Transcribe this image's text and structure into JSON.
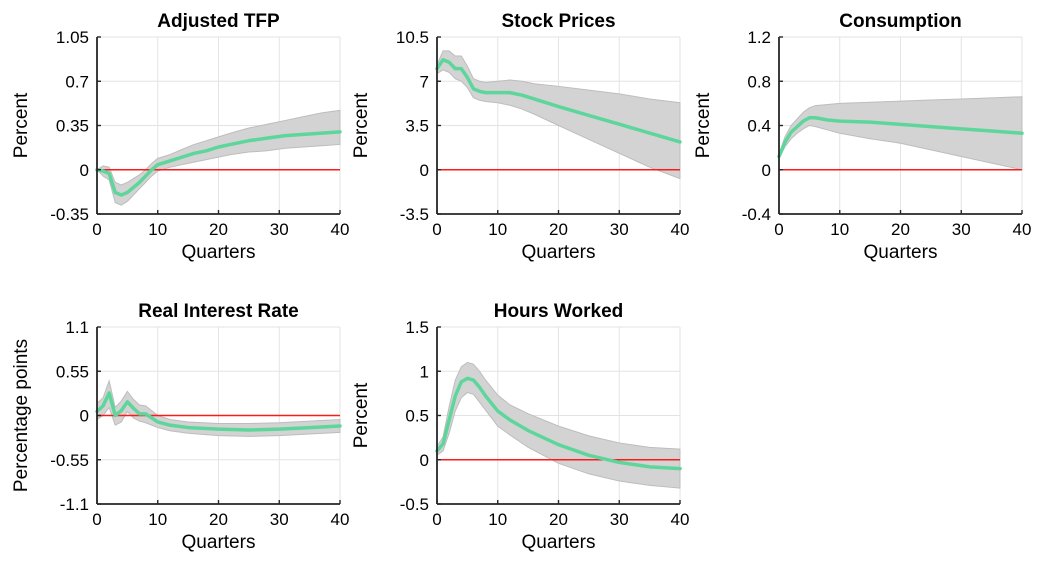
{
  "figure": {
    "background": "#ffffff"
  },
  "style": {
    "line_color": "#5ed69b",
    "band_color": "#d3d3d3",
    "zero_color": "#ff1a1a",
    "grid_color": "#e3e3e3"
  },
  "chart_data": [
    {
      "type": "line",
      "title": "Adjusted TFP",
      "xlabel": "Quarters",
      "ylabel": "Percent",
      "xlim": [
        0,
        40
      ],
      "ylim": [
        -0.35,
        1.05
      ],
      "xticks": [
        0,
        10,
        20,
        30,
        40
      ],
      "yticks": [
        -0.35,
        0,
        0.35,
        0.7,
        1.05
      ],
      "ytick_labels": [
        "-0.35",
        "0",
        "0.35",
        "0.7",
        "1.05"
      ],
      "grid": true,
      "zero_line": true,
      "series": [
        {
          "x": [
            0,
            1,
            2,
            3,
            4,
            5,
            6,
            7,
            8,
            9,
            10,
            12,
            14,
            16,
            18,
            20,
            22,
            25,
            28,
            31,
            34,
            37,
            40
          ],
          "values": [
            0.0,
            -0.01,
            -0.03,
            -0.18,
            -0.2,
            -0.18,
            -0.14,
            -0.1,
            -0.05,
            0.0,
            0.04,
            0.07,
            0.1,
            0.13,
            0.15,
            0.18,
            0.2,
            0.23,
            0.25,
            0.27,
            0.28,
            0.29,
            0.3
          ],
          "lower": [
            0.0,
            -0.05,
            -0.08,
            -0.26,
            -0.28,
            -0.25,
            -0.2,
            -0.15,
            -0.1,
            -0.05,
            -0.01,
            0.02,
            0.04,
            0.06,
            0.08,
            0.1,
            0.12,
            0.14,
            0.15,
            0.17,
            0.18,
            0.19,
            0.2
          ],
          "upper": [
            0.0,
            0.03,
            0.02,
            -0.1,
            -0.12,
            -0.1,
            -0.07,
            -0.04,
            0.0,
            0.05,
            0.09,
            0.12,
            0.16,
            0.2,
            0.23,
            0.26,
            0.29,
            0.33,
            0.36,
            0.39,
            0.42,
            0.45,
            0.47
          ]
        }
      ]
    },
    {
      "type": "line",
      "title": "Stock Prices",
      "xlabel": "Quarters",
      "ylabel": "Percent",
      "xlim": [
        0,
        40
      ],
      "ylim": [
        -3.5,
        10.5
      ],
      "xticks": [
        0,
        10,
        20,
        30,
        40
      ],
      "yticks": [
        -3.5,
        0,
        3.5,
        7,
        10.5
      ],
      "ytick_labels": [
        "-3.5",
        "0",
        "3.5",
        "7",
        "10.5"
      ],
      "grid": true,
      "zero_line": true,
      "series": [
        {
          "x": [
            0,
            1,
            2,
            3,
            4,
            5,
            6,
            7,
            8,
            10,
            12,
            14,
            16,
            20,
            25,
            30,
            35,
            40
          ],
          "values": [
            8.0,
            8.7,
            8.5,
            8.0,
            8.0,
            7.3,
            6.4,
            6.2,
            6.1,
            6.1,
            6.1,
            5.9,
            5.6,
            5.0,
            4.3,
            3.6,
            2.9,
            2.2
          ],
          "lower": [
            7.6,
            7.9,
            7.7,
            7.2,
            7.0,
            6.5,
            5.7,
            5.5,
            5.4,
            5.3,
            5.1,
            4.8,
            4.4,
            3.5,
            2.4,
            1.3,
            0.2,
            -0.7
          ],
          "upper": [
            8.3,
            9.4,
            9.4,
            9.0,
            9.0,
            8.2,
            7.2,
            7.0,
            6.9,
            7.0,
            7.1,
            7.0,
            6.8,
            6.6,
            6.3,
            6.0,
            5.6,
            5.3
          ]
        }
      ]
    },
    {
      "type": "line",
      "title": "Consumption",
      "xlabel": "Quarters",
      "ylabel": "Percent",
      "xlim": [
        0,
        40
      ],
      "ylim": [
        -0.4,
        1.2
      ],
      "xticks": [
        0,
        10,
        20,
        30,
        40
      ],
      "yticks": [
        -0.4,
        0,
        0.4,
        0.8,
        1.2
      ],
      "ytick_labels": [
        "-0.4",
        "0",
        "0.4",
        "0.8",
        "1.2"
      ],
      "grid": true,
      "zero_line": true,
      "series": [
        {
          "x": [
            0,
            1,
            2,
            3,
            4,
            5,
            6,
            8,
            10,
            15,
            20,
            25,
            30,
            35,
            40
          ],
          "values": [
            0.12,
            0.25,
            0.34,
            0.39,
            0.44,
            0.47,
            0.47,
            0.45,
            0.44,
            0.43,
            0.41,
            0.39,
            0.37,
            0.35,
            0.33
          ],
          "lower": [
            0.1,
            0.21,
            0.28,
            0.33,
            0.37,
            0.4,
            0.39,
            0.36,
            0.33,
            0.28,
            0.24,
            0.18,
            0.12,
            0.06,
            0.0
          ],
          "upper": [
            0.14,
            0.3,
            0.4,
            0.46,
            0.52,
            0.56,
            0.58,
            0.59,
            0.6,
            0.61,
            0.62,
            0.63,
            0.64,
            0.65,
            0.66
          ]
        }
      ]
    },
    {
      "type": "line",
      "title": "Real Interest Rate",
      "xlabel": "Quarters",
      "ylabel": "Percentage points",
      "xlim": [
        0,
        40
      ],
      "ylim": [
        -1.1,
        1.1
      ],
      "xticks": [
        0,
        10,
        20,
        30,
        40
      ],
      "yticks": [
        -1.1,
        -0.55,
        0,
        0.55,
        1.1
      ],
      "ytick_labels": [
        "-1.1",
        "-0.55",
        "0",
        "0.55",
        "1.1"
      ],
      "grid": true,
      "zero_line": true,
      "series": [
        {
          "x": [
            0,
            1,
            2,
            3,
            4,
            5,
            6,
            7,
            8,
            9,
            10,
            12,
            15,
            20,
            25,
            30,
            35,
            40
          ],
          "values": [
            0.05,
            0.12,
            0.28,
            0.0,
            0.06,
            0.17,
            0.09,
            0.02,
            0.02,
            -0.03,
            -0.08,
            -0.12,
            -0.15,
            -0.17,
            -0.18,
            -0.17,
            -0.15,
            -0.13
          ],
          "lower": [
            -0.05,
            0.0,
            0.1,
            -0.12,
            -0.08,
            0.05,
            -0.03,
            -0.07,
            -0.09,
            -0.12,
            -0.15,
            -0.19,
            -0.22,
            -0.25,
            -0.26,
            -0.25,
            -0.23,
            -0.21
          ],
          "upper": [
            0.15,
            0.22,
            0.43,
            0.1,
            0.18,
            0.3,
            0.2,
            0.13,
            0.12,
            0.06,
            0.0,
            -0.05,
            -0.08,
            -0.1,
            -0.1,
            -0.09,
            -0.07,
            -0.05
          ]
        }
      ]
    },
    {
      "type": "line",
      "title": "Hours Worked",
      "xlabel": "Quarters",
      "ylabel": "Percent",
      "xlim": [
        0,
        40
      ],
      "ylim": [
        -0.5,
        1.5
      ],
      "xticks": [
        0,
        10,
        20,
        30,
        40
      ],
      "yticks": [
        -0.5,
        0,
        0.5,
        1,
        1.5
      ],
      "ytick_labels": [
        "-0.5",
        "0",
        "0.5",
        "1",
        "1.5"
      ],
      "grid": true,
      "zero_line": true,
      "series": [
        {
          "x": [
            0,
            1,
            2,
            3,
            4,
            5,
            6,
            7,
            8,
            10,
            12,
            15,
            20,
            25,
            30,
            35,
            40
          ],
          "values": [
            0.1,
            0.18,
            0.45,
            0.72,
            0.88,
            0.92,
            0.9,
            0.82,
            0.72,
            0.55,
            0.45,
            0.33,
            0.17,
            0.05,
            -0.03,
            -0.08,
            -0.1
          ],
          "lower": [
            0.05,
            0.1,
            0.3,
            0.55,
            0.7,
            0.76,
            0.74,
            0.65,
            0.56,
            0.38,
            0.28,
            0.14,
            -0.04,
            -0.16,
            -0.24,
            -0.29,
            -0.32
          ],
          "upper": [
            0.15,
            0.26,
            0.6,
            0.9,
            1.05,
            1.1,
            1.08,
            1.0,
            0.9,
            0.73,
            0.62,
            0.52,
            0.38,
            0.27,
            0.19,
            0.14,
            0.12
          ]
        }
      ]
    }
  ]
}
